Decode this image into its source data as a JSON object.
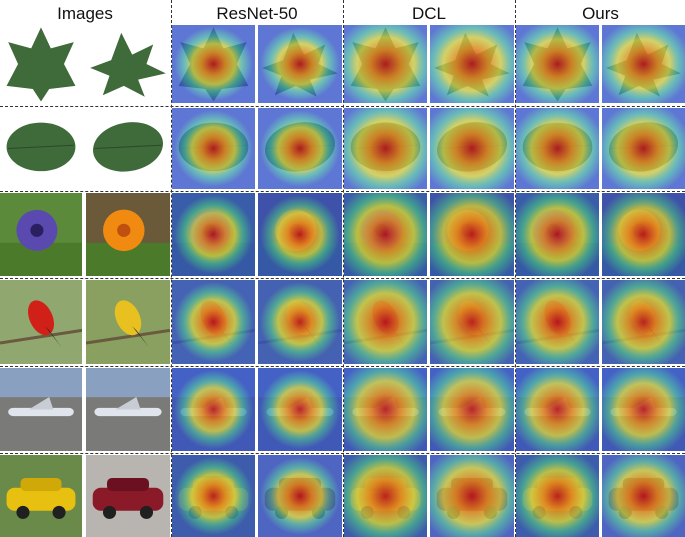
{
  "figure": {
    "columns": [
      {
        "key": "images",
        "title": "Images"
      },
      {
        "key": "resnet",
        "title": "ResNet-50"
      },
      {
        "key": "dcl",
        "title": "DCL"
      },
      {
        "key": "ours",
        "title": "Ours"
      }
    ],
    "rows": [
      {
        "subject": "maple-leaf"
      },
      {
        "subject": "oval-leaf"
      },
      {
        "subject": "flower"
      },
      {
        "subject": "bird"
      },
      {
        "subject": "aircraft"
      },
      {
        "subject": "car"
      }
    ]
  }
}
